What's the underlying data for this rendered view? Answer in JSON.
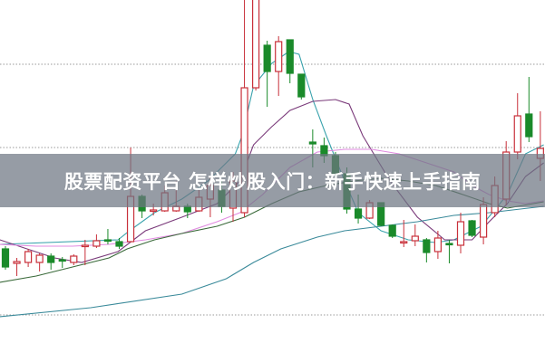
{
  "banner": {
    "title": "股票配资平台 怎样炒股入门：新手快速上手指南"
  },
  "chart_data": {
    "type": "candlestick",
    "title": "",
    "xlabel": "",
    "ylabel": "",
    "ylim": [
      0,
      400
    ],
    "grid": {
      "horizontal_dotted": true,
      "levels": [
        52,
        237,
        329
      ]
    },
    "colors": {
      "up": "#c8303a",
      "down": "#1a8a2a",
      "grid": "#999999"
    },
    "candles_ohlc": [
      [
        125,
        128,
        102,
        105
      ],
      [
        109,
        115,
        95,
        111
      ],
      [
        110,
        125,
        105,
        122
      ],
      [
        110,
        120,
        100,
        118
      ],
      [
        117,
        120,
        102,
        110
      ],
      [
        113,
        116,
        104,
        112
      ],
      [
        110,
        119,
        107,
        117
      ],
      [
        128,
        135,
        107,
        129
      ],
      [
        128,
        141,
        126,
        134
      ],
      [
        135,
        147,
        130,
        134
      ],
      [
        133,
        137,
        125,
        128
      ],
      [
        133,
        237,
        132,
        183
      ],
      [
        183,
        185,
        159,
        167
      ],
      [
        167,
        175,
        162,
        168
      ],
      [
        167,
        195,
        166,
        187
      ],
      [
        167,
        200,
        166,
        172
      ],
      [
        172,
        175,
        159,
        166
      ],
      [
        167,
        190,
        166,
        182
      ],
      [
        180,
        205,
        160,
        195
      ],
      [
        190,
        200,
        165,
        172
      ],
      [
        170,
        210,
        155,
        200
      ],
      [
        165,
        410,
        160,
        303
      ],
      [
        303,
        410,
        300,
        404
      ],
      [
        350,
        355,
        282,
        321
      ],
      [
        321,
        360,
        294,
        354
      ],
      [
        356,
        356,
        308,
        319
      ],
      [
        318,
        318,
        290,
        293
      ],
      [
        243,
        257,
        215,
        241
      ],
      [
        239,
        248,
        220,
        228
      ],
      [
        228,
        232,
        202,
        207
      ],
      [
        208,
        215,
        164,
        169
      ],
      [
        169,
        185,
        153,
        159
      ],
      [
        159,
        179,
        158,
        176
      ],
      [
        176,
        176,
        150,
        151
      ],
      [
        151,
        152,
        137,
        139
      ],
      [
        132,
        157,
        127,
        133
      ],
      [
        134,
        152,
        128,
        139
      ],
      [
        135,
        137,
        110,
        121
      ],
      [
        122,
        145,
        114,
        137
      ],
      [
        131,
        135,
        109,
        130
      ],
      [
        129,
        165,
        120,
        155
      ],
      [
        156,
        157,
        138,
        140
      ],
      [
        138,
        182,
        130,
        174
      ],
      [
        165,
        205,
        160,
        195
      ],
      [
        180,
        244,
        173,
        232
      ],
      [
        232,
        297,
        224,
        272
      ],
      [
        274,
        315,
        243,
        249
      ],
      [
        225,
        277,
        200,
        236
      ]
    ],
    "series": [
      {
        "color": "#3aa3ad",
        "points": [
          [
            -0.5,
            130
          ],
          [
            9.9,
            135
          ],
          [
            10.9,
            145
          ],
          [
            13.1,
            165
          ],
          [
            15.5,
            180
          ],
          [
            17.8,
            200
          ],
          [
            20.2,
            230
          ],
          [
            20.8,
            250
          ],
          [
            21.8,
            305
          ],
          [
            23.4,
            330
          ],
          [
            24.9,
            343
          ],
          [
            25.8,
            340
          ],
          [
            27.0,
            290
          ],
          [
            28.2,
            250
          ],
          [
            29.8,
            200
          ],
          [
            31.0,
            165
          ],
          [
            33.0,
            145
          ],
          [
            35.4,
            135
          ],
          [
            37.8,
            132
          ],
          [
            39.4,
            135
          ],
          [
            41.8,
            150
          ],
          [
            44.1,
            185
          ],
          [
            45.7,
            230
          ],
          [
            47.3,
            240
          ]
        ]
      },
      {
        "color": "#7a3a7a",
        "points": [
          [
            -0.5,
            135
          ],
          [
            1.9,
            125
          ],
          [
            4.3,
            115
          ],
          [
            6.7,
            110
          ],
          [
            9.9,
            122
          ],
          [
            12.3,
            145
          ],
          [
            15.5,
            160
          ],
          [
            18.6,
            175
          ],
          [
            20.6,
            200
          ],
          [
            21.8,
            240
          ],
          [
            23.4,
            260
          ],
          [
            25.0,
            278
          ],
          [
            27.0,
            288
          ],
          [
            29.0,
            290
          ],
          [
            30.2,
            285
          ],
          [
            31.4,
            250
          ],
          [
            33.8,
            200
          ],
          [
            36.2,
            160
          ],
          [
            38.6,
            135
          ],
          [
            41.0,
            135
          ],
          [
            42.5,
            155
          ],
          [
            44.1,
            175
          ],
          [
            45.7,
            205
          ],
          [
            47.3,
            220
          ]
        ]
      },
      {
        "color": "#e08ae0",
        "points": [
          [
            -0.5,
            130
          ],
          [
            2.7,
            128
          ],
          [
            5.9,
            128
          ],
          [
            9.1,
            130
          ],
          [
            12.3,
            135
          ],
          [
            15.5,
            142
          ],
          [
            18.6,
            155
          ],
          [
            20.6,
            165
          ],
          [
            22.6,
            185
          ],
          [
            25.0,
            215
          ],
          [
            27.4,
            232
          ],
          [
            29.8,
            235
          ],
          [
            32.2,
            235
          ],
          [
            34.6,
            230
          ],
          [
            37.0,
            220
          ],
          [
            39.4,
            210
          ],
          [
            41.0,
            195
          ],
          [
            42.5,
            185
          ],
          [
            44.1,
            178
          ],
          [
            45.7,
            175
          ],
          [
            47.3,
            178
          ]
        ]
      },
      {
        "color": "#3a6a3a",
        "points": [
          [
            -0.5,
            88
          ],
          [
            2.7,
            95
          ],
          [
            5.9,
            105
          ],
          [
            9.1,
            115
          ],
          [
            10.7,
            125
          ],
          [
            13.1,
            135
          ],
          [
            15.5,
            142
          ],
          [
            18.6,
            150
          ],
          [
            21.0,
            160
          ],
          [
            23.4,
            175
          ],
          [
            25.8,
            188
          ],
          [
            28.2,
            195
          ],
          [
            30.6,
            200
          ],
          [
            33.0,
            203
          ],
          [
            35.4,
            200
          ],
          [
            37.8,
            195
          ],
          [
            40.2,
            185
          ],
          [
            42.5,
            175
          ],
          [
            44.1,
            170
          ],
          [
            47.3,
            177
          ]
        ]
      },
      {
        "color": "#3a8a9a",
        "points": [
          [
            -0.5,
            50
          ],
          [
            7.5,
            60
          ],
          [
            15.5,
            75
          ],
          [
            19.4,
            92
          ],
          [
            21.8,
            110
          ],
          [
            24.2,
            125
          ],
          [
            27.4,
            138
          ],
          [
            29.8,
            145
          ],
          [
            33.0,
            150
          ],
          [
            36.2,
            155
          ],
          [
            39.4,
            162
          ],
          [
            42.5,
            165
          ],
          [
            47.3,
            172
          ]
        ]
      }
    ]
  }
}
